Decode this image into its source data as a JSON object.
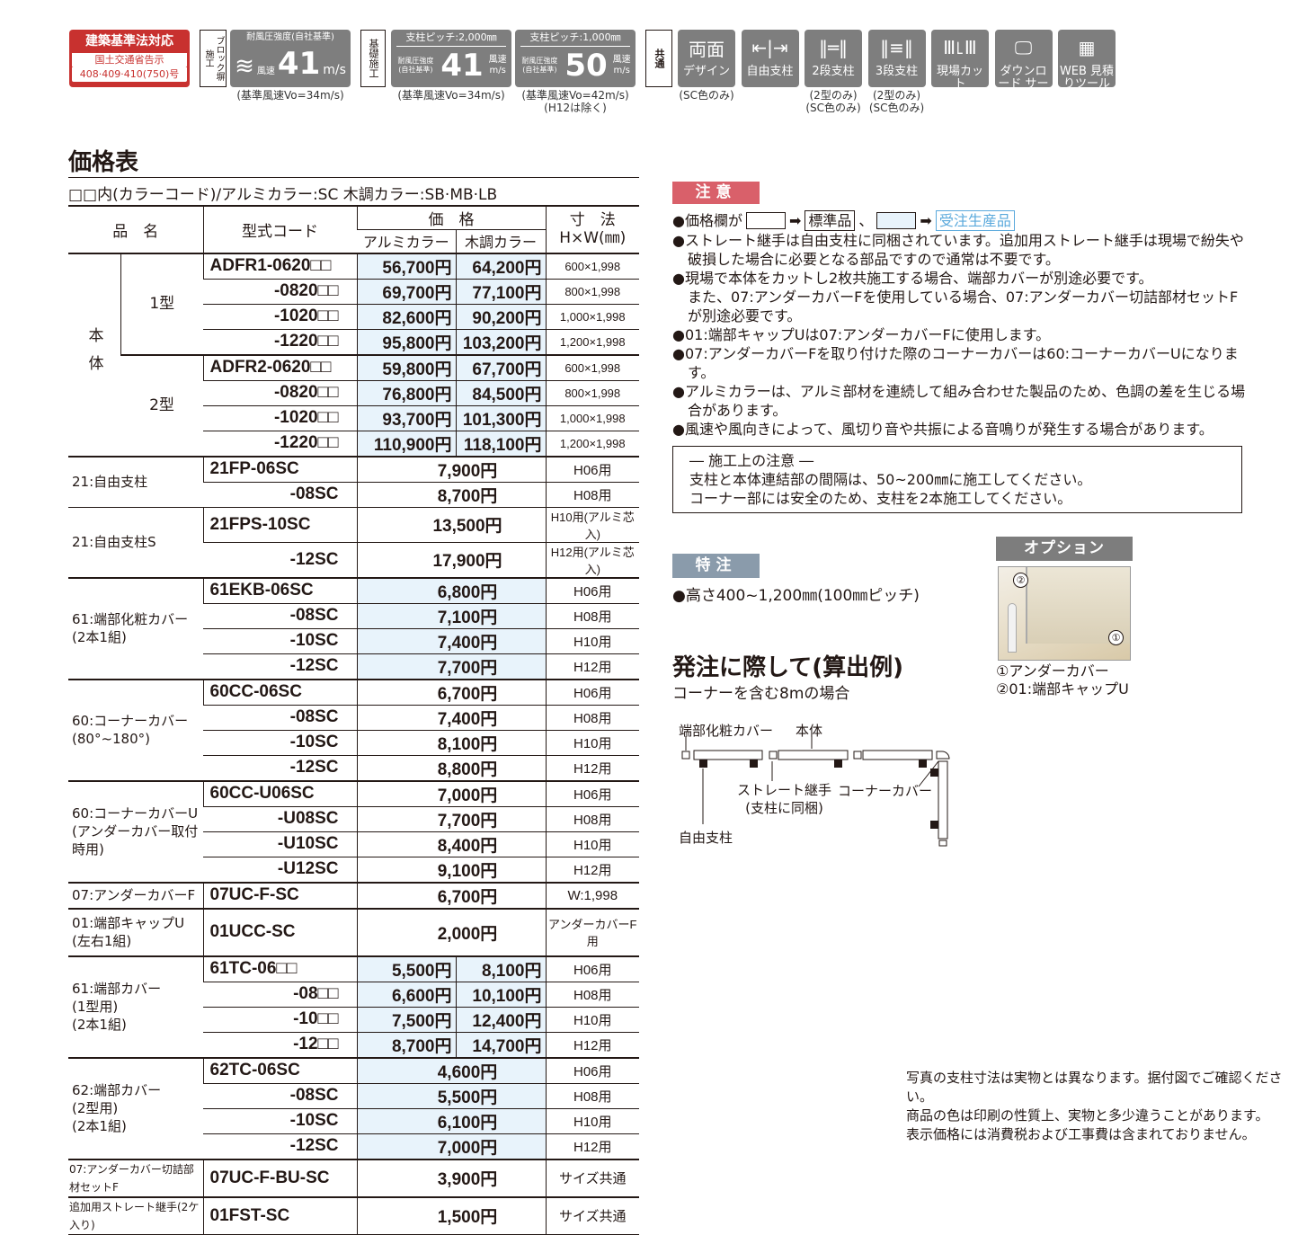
{
  "header": {
    "law_badge": {
      "title": "建築基準法対応",
      "line1": "国土交通省告示",
      "line2": "408·409·410(750)号"
    },
    "block_label": "ブロック塀施工",
    "block_strength": {
      "title": "耐風圧強度(自社基準)",
      "prefix": "風速",
      "value": "41",
      "unit": "m/s",
      "note": "(基準風速Vo=34m/s)"
    },
    "foundation_label": "基礎施工",
    "pitch2000": {
      "title": "支柱ピッチ:2,000㎜",
      "sub": "耐風圧強度(自社基準)",
      "value": "41",
      "unit": "風速 m/s",
      "note": "(基準風速Vo=34m/s)"
    },
    "pitch1000": {
      "title": "支柱ピッチ:1,000㎜",
      "sub": "耐風圧強度(自社基準)",
      "value": "50",
      "unit": "風速 m/s",
      "note": "(基準風速Vo=42m/s)",
      "note2": "(H12は除く)"
    },
    "common_label": "共通",
    "icons": [
      {
        "icon": "design-both-sides-icon",
        "label": "デザイン",
        "note": "(SC色のみ)",
        "glyph": "両面"
      },
      {
        "icon": "free-post-icon",
        "label": "自由支柱",
        "note": "",
        "glyph": "⇤|⇥"
      },
      {
        "icon": "two-tier-post-icon",
        "label": "2段支柱",
        "note": "(2型のみ)",
        "note2": "(SC色のみ)",
        "glyph": "‖═‖"
      },
      {
        "icon": "three-tier-post-icon",
        "label": "3段支柱",
        "note": "(2型のみ)",
        "note2": "(SC色のみ)",
        "glyph": "‖≡‖"
      },
      {
        "icon": "site-cut-icon",
        "label": "現場カット",
        "note": "",
        "glyph": "Ⅲ꜖Ⅲ"
      },
      {
        "icon": "download-monitor-icon",
        "label": "ダウンロード サービス",
        "note": "",
        "glyph": "🖵"
      },
      {
        "icon": "calculator-icon",
        "label": "WEB 見積りツール",
        "note": "",
        "glyph": "▦"
      }
    ]
  },
  "price_table": {
    "title": "価格表",
    "color_note": "□□内(カラーコード)/アルミカラー:SC 木調カラー:SB·MB·LB",
    "headers": {
      "name": "品　名",
      "code": "型式コード",
      "price": "価　格",
      "alumi": "アルミカラー",
      "wood": "木調カラー",
      "size": "寸　法",
      "size_unit": "H×W(㎜)"
    },
    "body_label": "本体",
    "groups": [
      {
        "name": "1型",
        "body": true,
        "hl": true,
        "rows": [
          {
            "code": "ADFR1-0620□□",
            "alumi": "56,700円",
            "wood": "64,200円",
            "size": "600×1,998"
          },
          {
            "code": "-0820□□",
            "alumi": "69,700円",
            "wood": "77,100円",
            "size": "800×1,998"
          },
          {
            "code": "-1020□□",
            "alumi": "82,600円",
            "wood": "90,200円",
            "size": "1,000×1,998"
          },
          {
            "code": "-1220□□",
            "alumi": "95,800円",
            "wood": "103,200円",
            "size": "1,200×1,998"
          }
        ]
      },
      {
        "name": "2型",
        "body": true,
        "hl": true,
        "rows": [
          {
            "code": "ADFR2-0620□□",
            "alumi": "59,800円",
            "wood": "67,700円",
            "size": "600×1,998"
          },
          {
            "code": "-0820□□",
            "alumi": "76,800円",
            "wood": "84,500円",
            "size": "800×1,998"
          },
          {
            "code": "-1020□□",
            "alumi": "93,700円",
            "wood": "101,300円",
            "size": "1,000×1,998"
          },
          {
            "code": "-1220□□",
            "alumi": "110,900円",
            "wood": "118,100円",
            "size": "1,200×1,998"
          }
        ]
      },
      {
        "name": "21:自由支柱",
        "rows": [
          {
            "code": "21FP-06SC",
            "price": "7,900円",
            "size": "H06用"
          },
          {
            "code": "-08SC",
            "price": "8,700円",
            "size": "H08用"
          }
        ]
      },
      {
        "name": "21:自由支柱S",
        "dashed": true,
        "rows": [
          {
            "code": "21FPS-10SC",
            "price": "13,500円",
            "size": "H10用(アルミ芯入)"
          },
          {
            "code": "-12SC",
            "price": "17,900円",
            "size": "H12用(アルミ芯入)"
          }
        ]
      },
      {
        "name": "61:端部化粧カバー\n(2本1組)",
        "hl": true,
        "rows": [
          {
            "code": "61EKB-06SC",
            "price": "6,800円",
            "size": "H06用"
          },
          {
            "code": "-08SC",
            "price": "7,100円",
            "size": "H08用"
          },
          {
            "code": "-10SC",
            "price": "7,400円",
            "size": "H10用"
          },
          {
            "code": "-12SC",
            "price": "7,700円",
            "size": "H12用"
          }
        ]
      },
      {
        "name": "60:コーナーカバー\n(80°~180°)",
        "rows": [
          {
            "code": "60CC-06SC",
            "price": "6,700円",
            "size": "H06用"
          },
          {
            "code": "-08SC",
            "price": "7,400円",
            "size": "H08用"
          },
          {
            "code": "-10SC",
            "price": "8,100円",
            "size": "H10用"
          },
          {
            "code": "-12SC",
            "price": "8,800円",
            "size": "H12用"
          }
        ]
      },
      {
        "name": "60:コーナーカバーU\n(アンダーカバー取付時用)",
        "rows": [
          {
            "code": "60CC-U06SC",
            "price": "7,000円",
            "size": "H06用"
          },
          {
            "code": "-U08SC",
            "price": "7,700円",
            "size": "H08用"
          },
          {
            "code": "-U10SC",
            "price": "8,400円",
            "size": "H10用"
          },
          {
            "code": "-U12SC",
            "price": "9,100円",
            "size": "H12用"
          }
        ]
      },
      {
        "name": "07:アンダーカバーF",
        "rows": [
          {
            "code": "07UC-F-SC",
            "price": "6,700円",
            "size": "W:1,998"
          }
        ]
      },
      {
        "name": "01:端部キャップU\n(左右1組)",
        "tall": true,
        "rows": [
          {
            "code": "01UCC-SC",
            "price": "2,000円",
            "size": "アンダーカバーF用"
          }
        ]
      },
      {
        "name": "61:端部カバー\n(1型用)\n(2本1組)",
        "hl": true,
        "rows": [
          {
            "code": "61TC-06□□",
            "alumi": "5,500円",
            "wood": "8,100円",
            "size": "H06用"
          },
          {
            "code": "-08□□",
            "alumi": "6,600円",
            "wood": "10,100円",
            "size": "H08用"
          },
          {
            "code": "-10□□",
            "alumi": "7,500円",
            "wood": "12,400円",
            "size": "H10用"
          },
          {
            "code": "-12□□",
            "alumi": "8,700円",
            "wood": "14,700円",
            "size": "H12用"
          }
        ]
      },
      {
        "name": "62:端部カバー\n(2型用)\n(2本1組)",
        "hl": true,
        "rows": [
          {
            "code": "62TC-06SC",
            "price": "4,600円",
            "size": "H06用"
          },
          {
            "code": "-08SC",
            "price": "5,500円",
            "size": "H08用"
          },
          {
            "code": "-10SC",
            "price": "6,100円",
            "size": "H10用"
          },
          {
            "code": "-12SC",
            "price": "7,000円",
            "size": "H12用"
          }
        ]
      },
      {
        "name": "07:アンダーカバー切詰部材セットF",
        "small": true,
        "rows": [
          {
            "code": "07UC-F-BU-SC",
            "price": "3,900円",
            "size": "サイズ共通"
          }
        ]
      },
      {
        "name": "追加用ストレート継手(2ケ入り)",
        "small": true,
        "rows": [
          {
            "code": "01FST-SC",
            "price": "1,500円",
            "size": "サイズ共通"
          }
        ]
      }
    ]
  },
  "caution": {
    "badge": "注意",
    "legend": {
      "prefix": "●価格欄が",
      "standard": "標準品",
      "sep": "、",
      "order": "受注生産品"
    },
    "items": [
      "●ストレート継手は自由支柱に同梱されています。追加用ストレート継手は現場で紛失や破損した場合に必要となる部品ですので通常は不要です。",
      "●現場で本体をカットし2枚共施工する場合、端部カバーが別途必要です。",
      "また、07:アンダーカバーFを使用している場合、07:アンダーカバー切詰部材セットFが別途必要です。",
      "●01:端部キャップUは07:アンダーカバーFに使用します。",
      "●07:アンダーカバーFを取り付けた際のコーナーカバーは60:コーナーカバーUになります。",
      "●アルミカラーは、アルミ部材を連続して組み合わせた製品のため、色調の差を生じる場合があります。",
      "●風速や風向きによって、風切り音や共振による音鳴りが発生する場合があります。"
    ],
    "construction": {
      "title": "― 施工上の注意 ―",
      "lines": [
        "支柱と本体連結部の間隔は、50~200㎜に施工してください。",
        "コーナー部には安全のため、支柱を2本施工してください。"
      ]
    }
  },
  "special": {
    "badge": "特注",
    "text": "●高さ400~1,200㎜(100㎜ピッチ)"
  },
  "option": {
    "badge": "オプション",
    "callout1": "①",
    "callout2": "②",
    "captions": [
      "①アンダーカバー",
      "②01:端部キャップU"
    ]
  },
  "order_example": {
    "title": "発注に際して(算出例)",
    "subtitle": "コーナーを含む8mの場合",
    "labels": {
      "end_cover": "端部化粧カバー",
      "body": "本体",
      "joint": "ストレート継手",
      "joint_note": "(支柱に同梱)",
      "corner": "コーナーカバー",
      "post": "自由支柱"
    }
  },
  "footer_notes": [
    "写真の支柱寸法は実物とは異なります。据付図でご確認ください。",
    "商品の色は印刷の性質上、実物と多少違うことがあります。",
    "表示価格には消費税および工事費は含まれておりません。"
  ],
  "colors": {
    "law_red": "#c8312f",
    "caution_red": "#d9606a",
    "special_gray": "#8a9bab",
    "icon_gray": "#7e7e7e",
    "highlight_blue": "#e8f3fb",
    "order_blue": "#5aa9dc"
  }
}
